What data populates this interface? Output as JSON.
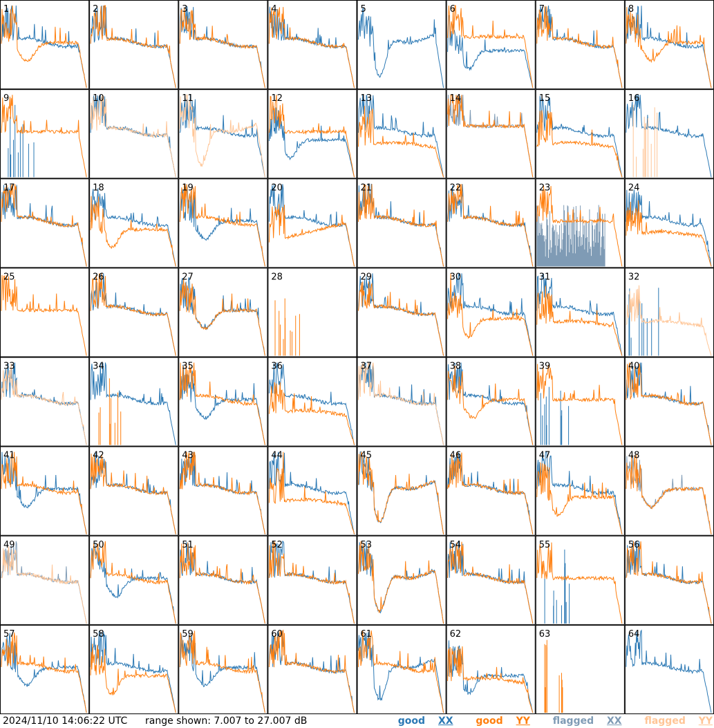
{
  "footer": {
    "timestamp": "2024/11/10 14:06:22 UTC",
    "range_text": "range shown: 7.007 to 27.007 dB"
  },
  "legend": [
    {
      "key": "good",
      "pol": "XX",
      "color": "#2a78b4"
    },
    {
      "key": "good",
      "pol": "YY",
      "color": "#ff7f0e"
    },
    {
      "key": "flagged",
      "pol": "XX",
      "color": "#7f9bb5"
    },
    {
      "key": "flagged",
      "pol": "YY",
      "color": "#ffc596"
    }
  ],
  "chart_data": {
    "type": "line",
    "grid": "8x8 small multiples",
    "ylim_db": [
      7.007,
      27.007
    ],
    "panels": [
      {
        "id": "1",
        "xx": "good",
        "yy": "good",
        "xx_shape": "normal",
        "yy_shape": "dip"
      },
      {
        "id": "2",
        "xx": "good",
        "yy": "good",
        "xx_shape": "normal",
        "yy_shape": "normal"
      },
      {
        "id": "3",
        "xx": "good",
        "yy": "good",
        "xx_shape": "normal",
        "yy_shape": "normal"
      },
      {
        "id": "4",
        "xx": "good",
        "yy": "good",
        "xx_shape": "normal",
        "yy_shape": "normal"
      },
      {
        "id": "5",
        "xx": "good",
        "yy": "none",
        "xx_shape": "deepdip",
        "yy_shape": "none"
      },
      {
        "id": "6",
        "xx": "good",
        "yy": "good",
        "xx_shape": "lowdip",
        "yy_shape": "high"
      },
      {
        "id": "7",
        "xx": "good",
        "yy": "good",
        "xx_shape": "normal",
        "yy_shape": "normal"
      },
      {
        "id": "8",
        "xx": "good",
        "yy": "good",
        "xx_shape": "normal",
        "yy_shape": "dip"
      },
      {
        "id": "9",
        "xx": "good",
        "yy": "good",
        "xx_shape": "spikes",
        "yy_shape": "flat"
      },
      {
        "id": "10",
        "xx": "good",
        "yy": "flagged",
        "xx_shape": "normal",
        "yy_shape": "normal"
      },
      {
        "id": "11",
        "xx": "good",
        "yy": "flagged",
        "xx_shape": "normal",
        "yy_shape": "deepdip"
      },
      {
        "id": "12",
        "xx": "good",
        "yy": "good",
        "xx_shape": "lowdip",
        "yy_shape": "flat"
      },
      {
        "id": "13",
        "xx": "good",
        "yy": "good",
        "xx_shape": "normal",
        "yy_shape": "low"
      },
      {
        "id": "14",
        "xx": "flagged",
        "yy": "good",
        "xx_shape": "high",
        "yy_shape": "high"
      },
      {
        "id": "15",
        "xx": "good",
        "yy": "good",
        "xx_shape": "normal",
        "yy_shape": "low"
      },
      {
        "id": "16",
        "xx": "good",
        "yy": "flagged",
        "xx_shape": "normal",
        "yy_shape": "spikes"
      },
      {
        "id": "17",
        "xx": "good",
        "yy": "good",
        "xx_shape": "normal",
        "yy_shape": "normal"
      },
      {
        "id": "18",
        "xx": "good",
        "yy": "good",
        "xx_shape": "normal",
        "yy_shape": "lowdip"
      },
      {
        "id": "19",
        "xx": "good",
        "yy": "good",
        "xx_shape": "dip",
        "yy_shape": "normal"
      },
      {
        "id": "20",
        "xx": "good",
        "yy": "good",
        "xx_shape": "normal",
        "yy_shape": "rising"
      },
      {
        "id": "21",
        "xx": "good",
        "yy": "good",
        "xx_shape": "normal",
        "yy_shape": "normal"
      },
      {
        "id": "22",
        "xx": "good",
        "yy": "good",
        "xx_shape": "normal",
        "yy_shape": "normal"
      },
      {
        "id": "23",
        "xx": "flagged",
        "yy": "good",
        "xx_shape": "noise",
        "yy_shape": "flat"
      },
      {
        "id": "24",
        "xx": "good",
        "yy": "good",
        "xx_shape": "normal",
        "yy_shape": "low"
      },
      {
        "id": "25",
        "xx": "none",
        "yy": "good",
        "xx_shape": "none",
        "yy_shape": "flat"
      },
      {
        "id": "26",
        "xx": "good",
        "yy": "good",
        "xx_shape": "normal",
        "yy_shape": "normal"
      },
      {
        "id": "27",
        "xx": "good",
        "yy": "good",
        "xx_shape": "dip",
        "yy_shape": "dip"
      },
      {
        "id": "28",
        "xx": "none",
        "yy": "good",
        "xx_shape": "none",
        "yy_shape": "spikes"
      },
      {
        "id": "29",
        "xx": "good",
        "yy": "good",
        "xx_shape": "normal",
        "yy_shape": "normal"
      },
      {
        "id": "30",
        "xx": "good",
        "yy": "good",
        "xx_shape": "normal",
        "yy_shape": "lowdip"
      },
      {
        "id": "31",
        "xx": "good",
        "yy": "good",
        "xx_shape": "normal",
        "yy_shape": "low"
      },
      {
        "id": "32",
        "xx": "good",
        "yy": "flagged",
        "xx_shape": "spikes",
        "yy_shape": "low"
      },
      {
        "id": "33",
        "xx": "good",
        "yy": "flagged",
        "xx_shape": "normal",
        "yy_shape": "normal"
      },
      {
        "id": "34",
        "xx": "good",
        "yy": "good",
        "xx_shape": "normal",
        "yy_shape": "spikes"
      },
      {
        "id": "35",
        "xx": "good",
        "yy": "good",
        "xx_shape": "dip",
        "yy_shape": "normal"
      },
      {
        "id": "36",
        "xx": "good",
        "yy": "good",
        "xx_shape": "normal",
        "yy_shape": "low"
      },
      {
        "id": "37",
        "xx": "good",
        "yy": "flagged",
        "xx_shape": "normal",
        "yy_shape": "normal"
      },
      {
        "id": "38",
        "xx": "good",
        "yy": "good",
        "xx_shape": "normal",
        "yy_shape": "dip"
      },
      {
        "id": "39",
        "xx": "good",
        "yy": "good",
        "xx_shape": "spikes",
        "yy_shape": "flat"
      },
      {
        "id": "40",
        "xx": "good",
        "yy": "good",
        "xx_shape": "normal",
        "yy_shape": "normal"
      },
      {
        "id": "41",
        "xx": "good",
        "yy": "good",
        "xx_shape": "dip",
        "yy_shape": "normal"
      },
      {
        "id": "42",
        "xx": "good",
        "yy": "good",
        "xx_shape": "normal",
        "yy_shape": "normal"
      },
      {
        "id": "43",
        "xx": "good",
        "yy": "good",
        "xx_shape": "normal",
        "yy_shape": "normal"
      },
      {
        "id": "44",
        "xx": "good",
        "yy": "good",
        "xx_shape": "normal",
        "yy_shape": "low"
      },
      {
        "id": "45",
        "xx": "good",
        "yy": "good",
        "xx_shape": "deepdip",
        "yy_shape": "deepdip"
      },
      {
        "id": "46",
        "xx": "good",
        "yy": "good",
        "xx_shape": "normal",
        "yy_shape": "normal"
      },
      {
        "id": "47",
        "xx": "good",
        "yy": "good",
        "xx_shape": "normal",
        "yy_shape": "lowdip"
      },
      {
        "id": "48",
        "xx": "flagged",
        "yy": "good",
        "xx_shape": "dip",
        "yy_shape": "dip"
      },
      {
        "id": "49",
        "xx": "flagged",
        "yy": "flagged",
        "xx_shape": "normal",
        "yy_shape": "normal"
      },
      {
        "id": "50",
        "xx": "good",
        "yy": "good",
        "xx_shape": "dip",
        "yy_shape": "normal"
      },
      {
        "id": "51",
        "xx": "good",
        "yy": "good",
        "xx_shape": "normal",
        "yy_shape": "normal"
      },
      {
        "id": "52",
        "xx": "good",
        "yy": "good",
        "xx_shape": "normal",
        "yy_shape": "normal"
      },
      {
        "id": "53",
        "xx": "good",
        "yy": "good",
        "xx_shape": "deepdip",
        "yy_shape": "deepdip"
      },
      {
        "id": "54",
        "xx": "good",
        "yy": "good",
        "xx_shape": "normal",
        "yy_shape": "normal"
      },
      {
        "id": "55",
        "xx": "good",
        "yy": "good",
        "xx_shape": "spikes",
        "yy_shape": "flat"
      },
      {
        "id": "56",
        "xx": "good",
        "yy": "good",
        "xx_shape": "normal",
        "yy_shape": "normal"
      },
      {
        "id": "57",
        "xx": "good",
        "yy": "good",
        "xx_shape": "dip",
        "yy_shape": "normal"
      },
      {
        "id": "58",
        "xx": "good",
        "yy": "good",
        "xx_shape": "normal",
        "yy_shape": "lowdip"
      },
      {
        "id": "59",
        "xx": "good",
        "yy": "good",
        "xx_shape": "dip",
        "yy_shape": "normal"
      },
      {
        "id": "60",
        "xx": "good",
        "yy": "good",
        "xx_shape": "normal",
        "yy_shape": "normal"
      },
      {
        "id": "61",
        "xx": "good",
        "yy": "good",
        "xx_shape": "deepdip",
        "yy_shape": "normal"
      },
      {
        "id": "62",
        "xx": "good",
        "yy": "good",
        "xx_shape": "lowdip",
        "yy_shape": "low"
      },
      {
        "id": "63",
        "xx": "none",
        "yy": "good",
        "xx_shape": "none",
        "yy_shape": "spikes"
      },
      {
        "id": "64",
        "xx": "good",
        "yy": "none",
        "xx_shape": "normal",
        "yy_shape": "none"
      }
    ]
  }
}
